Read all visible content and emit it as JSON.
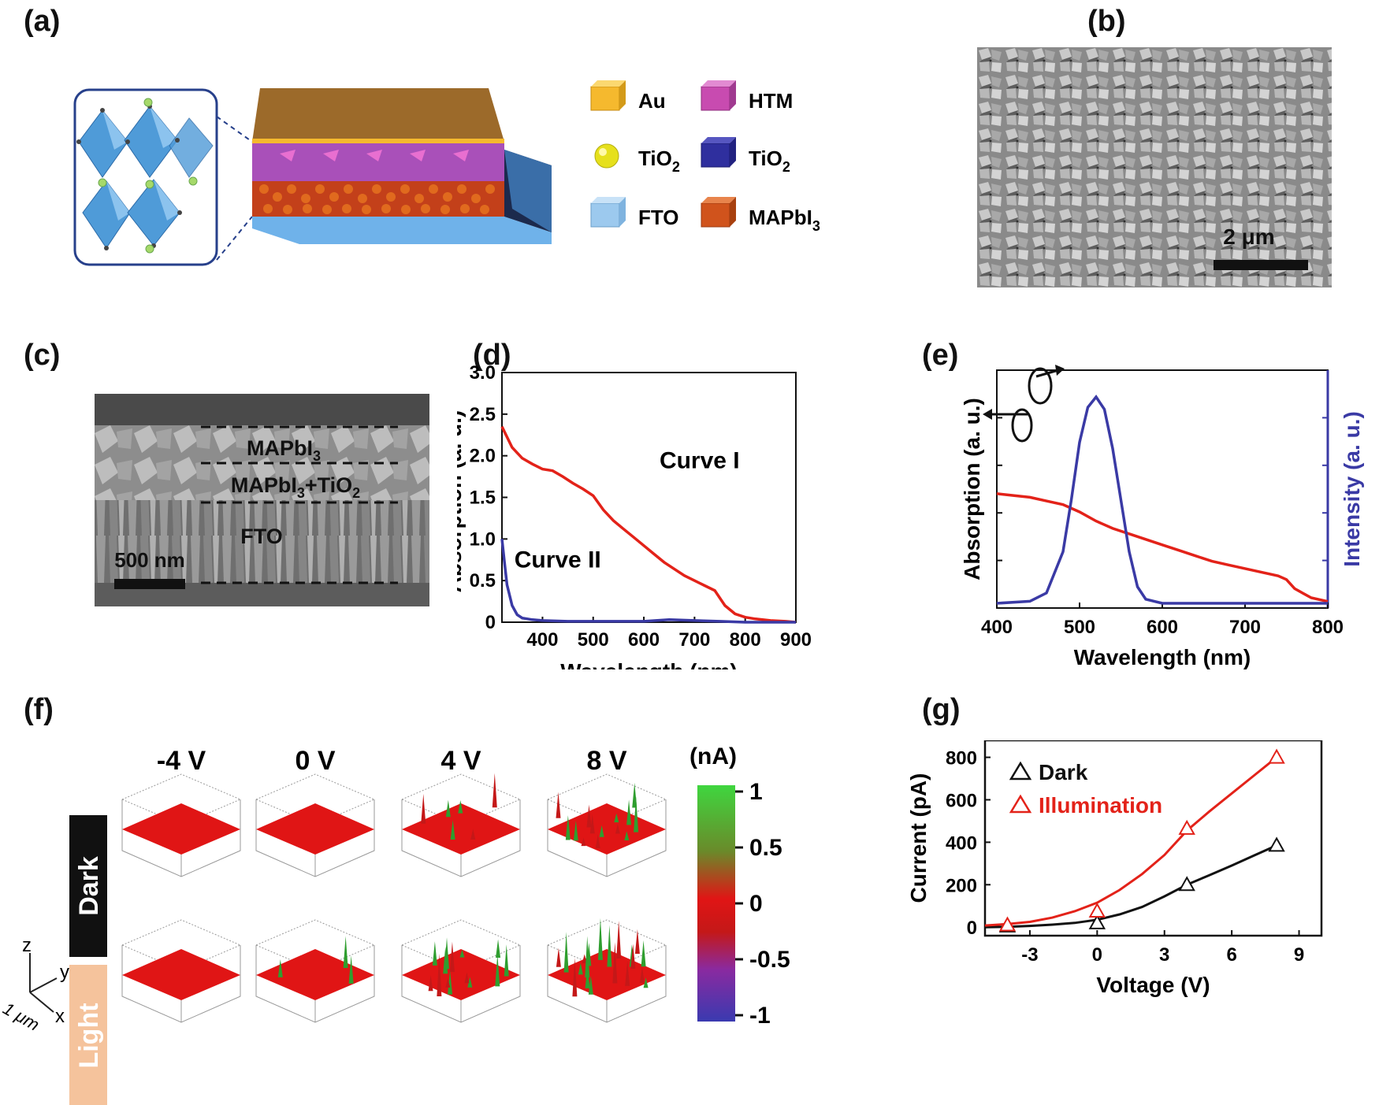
{
  "panels": {
    "a": {
      "label": "(a)",
      "legend": [
        {
          "name": "Au",
          "color": "#f5b92e"
        },
        {
          "name": "HTM",
          "color": "#c84bb0"
        },
        {
          "name": "TiO",
          "sub": "2",
          "color": "#e6e01c",
          "shape": "sphere"
        },
        {
          "name": "TiO",
          "sub": "2",
          "color": "#2f2f9e"
        },
        {
          "name": "FTO",
          "color": "#9cc9ee"
        },
        {
          "name": "MAPbI",
          "sub": "3",
          "color": "#d0531c"
        }
      ]
    },
    "b": {
      "label": "(b)",
      "scalebar": "2 μm"
    },
    "c": {
      "label": "(c)",
      "layers": [
        {
          "text": "MAPbI",
          "sub": "3"
        },
        {
          "text": "MAPbI",
          "sub": "3",
          "text2": "+TiO",
          "sub2": "2"
        },
        {
          "text": "FTO"
        }
      ],
      "scalebar": "500 nm"
    },
    "f": {
      "label": "(f)",
      "columns": [
        "-4 V",
        "0 V",
        "4 V",
        "8 V"
      ],
      "rows": [
        "Dark",
        "Light"
      ],
      "row_colors": {
        "Dark": "#111111",
        "Light": "#f5c39c"
      },
      "unit": "(nA)",
      "colorbar_ticks": [
        "1",
        "0.5",
        "0",
        "-0.5",
        "-1"
      ],
      "axes_labels": {
        "z": "z",
        "y": "y",
        "x": "x",
        "scale": "1 μm"
      }
    }
  },
  "chart_data": [
    {
      "id": "d",
      "label": "(d)",
      "type": "line",
      "xlabel": "Wavelength (nm)",
      "ylabel": "Absorption (a. u.)",
      "xlim": [
        320,
        900
      ],
      "ylim": [
        0,
        3.0
      ],
      "xticks": [
        400,
        500,
        600,
        700,
        800,
        900
      ],
      "yticks": [
        0,
        0.5,
        1.0,
        1.5,
        2.0,
        2.5,
        3.0
      ],
      "ytick_labels": [
        "0",
        "0.5",
        "1.0",
        "1.5",
        "2.0",
        "2.5",
        "3.0"
      ],
      "series": [
        {
          "name": "Curve I",
          "color": "#e32219",
          "x": [
            320,
            340,
            360,
            380,
            400,
            420,
            440,
            460,
            480,
            500,
            520,
            540,
            560,
            580,
            600,
            620,
            640,
            660,
            680,
            700,
            720,
            740,
            760,
            780,
            800,
            820,
            850,
            880,
            900
          ],
          "y": [
            2.35,
            2.1,
            1.97,
            1.9,
            1.84,
            1.82,
            1.75,
            1.67,
            1.6,
            1.52,
            1.35,
            1.22,
            1.12,
            1.02,
            0.92,
            0.82,
            0.72,
            0.64,
            0.56,
            0.5,
            0.44,
            0.38,
            0.2,
            0.1,
            0.06,
            0.04,
            0.02,
            0.01,
            0.0
          ]
        },
        {
          "name": "Curve II",
          "color": "#3a3aa5",
          "x": [
            320,
            325,
            330,
            340,
            350,
            360,
            380,
            400,
            450,
            500,
            600,
            650,
            700,
            750,
            800,
            900
          ],
          "y": [
            1.0,
            0.72,
            0.45,
            0.2,
            0.09,
            0.05,
            0.03,
            0.02,
            0.01,
            0.01,
            0.01,
            0.03,
            0.02,
            0.01,
            0.0,
            0.0
          ]
        }
      ],
      "annotations": [
        {
          "text": "Curve I",
          "x": 710,
          "y": 1.85
        },
        {
          "text": "Curve II",
          "x": 430,
          "y": 0.66
        }
      ]
    },
    {
      "id": "e",
      "label": "(e)",
      "type": "line",
      "xlabel": "Wavelength (nm)",
      "ylabel": "Absorption (a. u.)",
      "y2label": "Intensity (a. u.)",
      "xlim": [
        400,
        800
      ],
      "ylim": [
        0,
        1
      ],
      "xticks": [
        400,
        500,
        600,
        700,
        800
      ],
      "series": [
        {
          "name": "Absorption",
          "color": "#e32219",
          "axis": "left",
          "x": [
            400,
            420,
            440,
            460,
            480,
            500,
            520,
            540,
            560,
            580,
            600,
            620,
            640,
            660,
            680,
            700,
            720,
            740,
            750,
            760,
            780,
            800
          ],
          "y": [
            0.6,
            0.59,
            0.58,
            0.56,
            0.54,
            0.5,
            0.45,
            0.41,
            0.38,
            0.35,
            0.32,
            0.29,
            0.26,
            0.23,
            0.21,
            0.19,
            0.17,
            0.15,
            0.13,
            0.08,
            0.03,
            0.01
          ]
        },
        {
          "name": "Intensity",
          "color": "#3a3aa5",
          "axis": "right",
          "x": [
            400,
            440,
            460,
            480,
            490,
            500,
            510,
            520,
            530,
            540,
            550,
            560,
            570,
            580,
            600,
            640,
            700,
            800
          ],
          "y": [
            0.0,
            0.01,
            0.05,
            0.25,
            0.5,
            0.78,
            0.95,
            1.0,
            0.94,
            0.75,
            0.5,
            0.25,
            0.08,
            0.02,
            0.0,
            0.0,
            0.0,
            0.0
          ]
        }
      ]
    },
    {
      "id": "g",
      "label": "(g)",
      "type": "line",
      "xlabel": "Voltage (V)",
      "ylabel": "Current (pA)",
      "xlim": [
        -5,
        10
      ],
      "ylim": [
        -40,
        880
      ],
      "xticks": [
        -3,
        0,
        3,
        6,
        9
      ],
      "yticks": [
        0,
        200,
        400,
        600,
        800
      ],
      "series": [
        {
          "name": "Dark",
          "color": "#111111",
          "points": {
            "x": [
              -4,
              0,
              4,
              8
            ],
            "y": [
              5,
              20,
              200,
              385
            ]
          },
          "fit": {
            "x": [
              -5,
              -4,
              -3,
              -2,
              -1,
              0,
              1,
              2,
              3,
              4,
              5,
              6,
              7,
              8
            ],
            "y": [
              0,
              2,
              6,
              12,
              20,
              35,
              60,
              95,
              145,
              200,
              245,
              290,
              338,
              385
            ]
          }
        },
        {
          "name": "Illumination",
          "color": "#e32219",
          "points": {
            "x": [
              -4,
              0,
              4,
              8
            ],
            "y": [
              10,
              75,
              465,
              800
            ]
          },
          "fit": {
            "x": [
              -5,
              -4,
              -3,
              -2,
              -1,
              0,
              1,
              2,
              3,
              4,
              5,
              6,
              7,
              8
            ],
            "y": [
              8,
              15,
              25,
              45,
              75,
              115,
              175,
              250,
              340,
              455,
              545,
              630,
              715,
              800
            ]
          }
        }
      ]
    }
  ]
}
